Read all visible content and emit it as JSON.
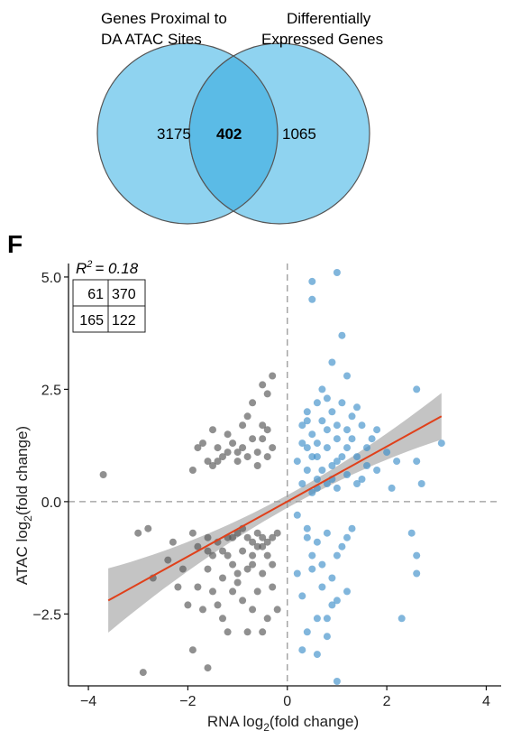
{
  "venn": {
    "left_label_line1": "Genes Proximal to",
    "left_label_line2": "DA ATAC Sites",
    "right_label_line1": "Differentially",
    "right_label_line2": "Expressed Genes",
    "left_only": "3175",
    "overlap": "402",
    "right_only": "1065",
    "colors": {
      "circle": "#8fd3f0",
      "overlap": "#5bbbe6",
      "stroke": "#555555"
    }
  },
  "chart_data": {
    "type": "scatter",
    "panel_label": "F",
    "annotation": "= 0.18",
    "annotation_prefix": "R",
    "annotation_sup": "2",
    "quadrant_table": [
      [
        "61",
        "370"
      ],
      [
        "165",
        "122"
      ]
    ],
    "xlabel_pre": "RNA log",
    "xlabel_sub": "2",
    "xlabel_post": "(fold change)",
    "ylabel_pre": "ATAC log",
    "ylabel_sub": "2",
    "ylabel_post": "(fold change)",
    "xlim": [
      -4.4,
      4.3
    ],
    "ylim": [
      -4.1,
      5.3
    ],
    "xticks": [
      -4,
      -2,
      0,
      2,
      4
    ],
    "xtick_labels": [
      "−4",
      "−2",
      "0",
      "2",
      "4"
    ],
    "yticks": [
      -2.5,
      0.0,
      2.5,
      5.0
    ],
    "ytick_labels": [
      "−2.5",
      "0.0",
      "2.5",
      "5.0"
    ],
    "reference_lines": {
      "x": 0,
      "y": 0,
      "style": "dashed"
    },
    "fit_line": {
      "x": [
        -3.6,
        3.1
      ],
      "y": [
        -2.2,
        1.9
      ],
      "color": "#e0401a"
    },
    "colors": {
      "grey_points": "#555555",
      "blue_points": "#3d8fc9",
      "ci_band": "#b0b0b0"
    },
    "series": [
      {
        "name": "",
        "color": "grey",
        "points": [
          [
            -3.7,
            0.6
          ],
          [
            -2.9,
            -3.8
          ],
          [
            -3.0,
            -0.7
          ],
          [
            -2.7,
            -1.7
          ],
          [
            -2.8,
            -0.6
          ],
          [
            -2.4,
            -1.3
          ],
          [
            -2.2,
            -1.9
          ],
          [
            -2.0,
            -2.3
          ],
          [
            -1.9,
            -3.3
          ],
          [
            -1.6,
            -3.7
          ],
          [
            -1.8,
            -1.0
          ],
          [
            -1.6,
            -1.5
          ],
          [
            -1.5,
            -2.0
          ],
          [
            -1.3,
            -2.6
          ],
          [
            -1.2,
            -1.2
          ],
          [
            -1.1,
            -0.8
          ],
          [
            -1.0,
            -1.8
          ],
          [
            -0.9,
            -2.2
          ],
          [
            -0.8,
            -2.9
          ],
          [
            -0.7,
            -1.4
          ],
          [
            -0.6,
            -0.7
          ],
          [
            -0.5,
            -1.0
          ],
          [
            -0.4,
            -2.6
          ],
          [
            -0.3,
            -1.9
          ],
          [
            -0.2,
            -2.4
          ],
          [
            -0.3,
            -0.8
          ],
          [
            -0.5,
            -1.6
          ],
          [
            -0.7,
            -0.9
          ],
          [
            -0.9,
            -1.1
          ],
          [
            -1.1,
            -2.0
          ],
          [
            -1.3,
            -1.7
          ],
          [
            -1.4,
            -0.9
          ],
          [
            -1.6,
            -0.8
          ],
          [
            -1.7,
            -2.4
          ],
          [
            -1.9,
            -0.7
          ],
          [
            -2.1,
            -1.5
          ],
          [
            -1.2,
            -2.9
          ],
          [
            -0.8,
            -1.5
          ],
          [
            -0.6,
            -2.0
          ],
          [
            -0.4,
            -1.2
          ],
          [
            -0.2,
            -0.7
          ],
          [
            -1.0,
            -0.7
          ],
          [
            -1.5,
            -1.2
          ],
          [
            -0.7,
            -2.4
          ],
          [
            -0.5,
            -2.9
          ],
          [
            -1.8,
            -1.9
          ],
          [
            -2.3,
            -0.9
          ],
          [
            -0.9,
            -0.6
          ],
          [
            -1.4,
            -2.3
          ],
          [
            -0.3,
            -1.4
          ],
          [
            -0.6,
            -1.0
          ],
          [
            -1.1,
            -1.4
          ],
          [
            -0.8,
            -0.8
          ],
          [
            -0.4,
            -0.9
          ],
          [
            -1.3,
            -1.1
          ],
          [
            -1.0,
            -1.6
          ],
          [
            -0.7,
            -1.2
          ],
          [
            -0.5,
            -0.8
          ],
          [
            -1.2,
            -0.8
          ],
          [
            -1.6,
            -1.1
          ],
          [
            -1.9,
            0.7
          ],
          [
            -1.7,
            1.3
          ],
          [
            -1.4,
            0.9
          ],
          [
            -1.2,
            1.5
          ],
          [
            -1.0,
            1.1
          ],
          [
            -0.8,
            1.9
          ],
          [
            -0.6,
            0.8
          ],
          [
            -0.5,
            1.4
          ],
          [
            -0.4,
            2.4
          ],
          [
            -0.3,
            2.8
          ],
          [
            -0.5,
            2.6
          ],
          [
            -0.7,
            2.2
          ],
          [
            -0.9,
            1.7
          ],
          [
            -1.1,
            1.3
          ],
          [
            -1.3,
            1.0
          ],
          [
            -1.5,
            0.8
          ],
          [
            -0.6,
            1.1
          ],
          [
            -0.4,
            1.0
          ],
          [
            -0.3,
            1.2
          ],
          [
            -0.8,
            1.0
          ],
          [
            -1.0,
            0.9
          ],
          [
            -1.2,
            1.1
          ],
          [
            -1.4,
            1.2
          ],
          [
            -1.6,
            0.9
          ],
          [
            -0.7,
            1.4
          ],
          [
            -0.9,
            1.2
          ],
          [
            -0.5,
            1.7
          ],
          [
            -0.4,
            1.6
          ],
          [
            -1.8,
            1.2
          ],
          [
            -1.5,
            1.6
          ]
        ]
      },
      {
        "name": "",
        "color": "blue",
        "points": [
          [
            0.5,
            4.9
          ],
          [
            0.5,
            4.5
          ],
          [
            1.0,
            5.1
          ],
          [
            1.1,
            3.7
          ],
          [
            0.9,
            3.1
          ],
          [
            1.2,
            2.8
          ],
          [
            0.7,
            2.5
          ],
          [
            0.6,
            2.2
          ],
          [
            0.4,
            2.0
          ],
          [
            0.3,
            1.7
          ],
          [
            0.8,
            1.6
          ],
          [
            1.0,
            1.4
          ],
          [
            1.3,
            1.9
          ],
          [
            1.5,
            1.7
          ],
          [
            1.7,
            1.4
          ],
          [
            2.0,
            1.1
          ],
          [
            2.2,
            0.9
          ],
          [
            2.6,
            0.9
          ],
          [
            2.6,
            2.5
          ],
          [
            3.1,
            1.3
          ],
          [
            2.7,
            0.4
          ],
          [
            2.1,
            0.3
          ],
          [
            1.8,
            0.7
          ],
          [
            1.5,
            0.5
          ],
          [
            1.2,
            0.6
          ],
          [
            0.9,
            0.8
          ],
          [
            0.6,
            0.5
          ],
          [
            0.3,
            0.4
          ],
          [
            0.2,
            0.9
          ],
          [
            0.4,
            1.2
          ],
          [
            0.6,
            1.0
          ],
          [
            0.8,
            1.2
          ],
          [
            1.0,
            0.9
          ],
          [
            1.2,
            1.2
          ],
          [
            1.4,
            1.0
          ],
          [
            1.6,
            0.8
          ],
          [
            1.8,
            1.6
          ],
          [
            0.5,
            1.5
          ],
          [
            0.7,
            1.8
          ],
          [
            0.9,
            2.0
          ],
          [
            1.1,
            2.2
          ],
          [
            1.3,
            1.4
          ],
          [
            0.4,
            0.7
          ],
          [
            0.6,
            0.3
          ],
          [
            0.8,
            0.4
          ],
          [
            1.0,
            0.3
          ],
          [
            1.1,
            1.0
          ],
          [
            0.7,
            0.7
          ],
          [
            0.5,
            1.0
          ],
          [
            0.3,
            1.3
          ],
          [
            0.2,
            -0.3
          ],
          [
            0.4,
            -0.6
          ],
          [
            0.6,
            -0.9
          ],
          [
            0.8,
            -0.7
          ],
          [
            1.0,
            -1.2
          ],
          [
            1.2,
            -0.8
          ],
          [
            0.5,
            -1.5
          ],
          [
            0.7,
            -1.9
          ],
          [
            0.9,
            -2.3
          ],
          [
            0.6,
            -2.6
          ],
          [
            0.4,
            -2.9
          ],
          [
            0.8,
            -3.0
          ],
          [
            0.3,
            -3.3
          ],
          [
            0.6,
            -3.4
          ],
          [
            1.0,
            -4.0
          ],
          [
            0.3,
            -2.1
          ],
          [
            0.5,
            -1.2
          ],
          [
            0.7,
            -1.4
          ],
          [
            0.9,
            -1.7
          ],
          [
            1.1,
            -1.0
          ],
          [
            1.2,
            -2.0
          ],
          [
            1.3,
            -0.6
          ],
          [
            0.2,
            -1.6
          ],
          [
            0.8,
            -2.6
          ],
          [
            1.0,
            -2.2
          ],
          [
            2.3,
            -2.6
          ],
          [
            2.5,
            -0.7
          ],
          [
            2.6,
            -1.2
          ],
          [
            2.6,
            -1.6
          ],
          [
            0.4,
            -0.8
          ],
          [
            0.9,
            0.5
          ],
          [
            1.4,
            0.4
          ],
          [
            0.5,
            0.2
          ],
          [
            1.6,
            1.2
          ],
          [
            0.4,
            1.8
          ],
          [
            0.8,
            2.3
          ],
          [
            1.2,
            1.6
          ],
          [
            0.6,
            1.3
          ],
          [
            1.0,
            1.7
          ],
          [
            1.4,
            2.1
          ]
        ]
      }
    ]
  }
}
